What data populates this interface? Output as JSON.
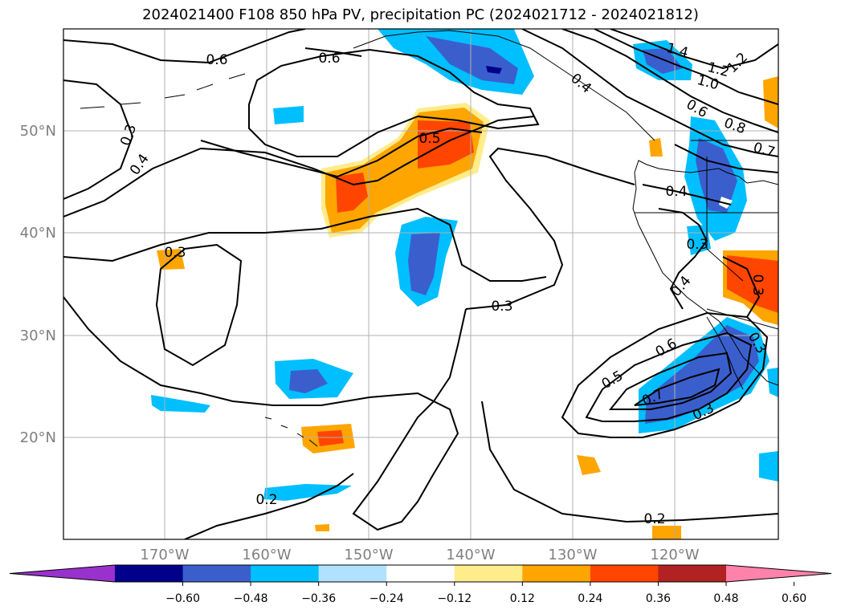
{
  "title": "2024021400 F108 850 hPa PV, precipitation PC (2024021712 - 2024021812)",
  "map": {
    "lat_labels": [
      "50°N",
      "40°N",
      "30°N",
      "20°N"
    ],
    "lon_labels": [
      "170°W",
      "160°W",
      "150°W",
      "140°W",
      "130°W",
      "120°W"
    ],
    "grid": true,
    "label_color": "#808080"
  },
  "contour_labels": [
    "0.6",
    "0.6",
    "0.3",
    "0.4",
    "0.5",
    "0.3",
    "0.3",
    "0.4",
    "0.3",
    "0.2",
    "0.2",
    "0.6",
    "0.5",
    "0.7",
    "0.3",
    "0.4",
    "0.3",
    "0.3",
    "0.4",
    "1.4",
    "1.2",
    "1.0",
    "1.2",
    "0.6",
    "0.8",
    "0.7"
  ],
  "colorbar": {
    "ticks": [
      "−0.60",
      "−0.48",
      "−0.36",
      "−0.24",
      "−0.12",
      "0.12",
      "0.24",
      "0.36",
      "0.48",
      "0.60"
    ],
    "colors": [
      "#9932cc",
      "#00008b",
      "#3a5fcd",
      "#00bfff",
      "#b0e2ff",
      "#ffffff",
      "#ffec8b",
      "#ffa500",
      "#ff4500",
      "#b22222",
      "#ff82ab"
    ]
  }
}
